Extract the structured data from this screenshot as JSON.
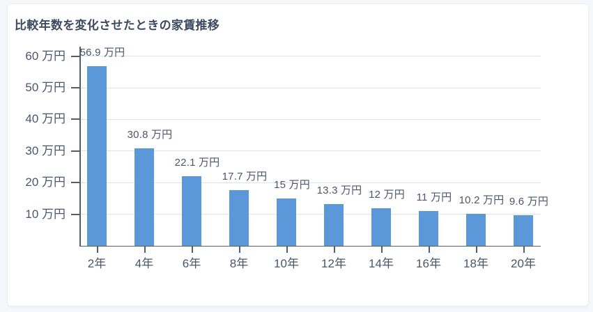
{
  "page": {
    "background_color": "#f6f7fa",
    "card_color": "#ffffff"
  },
  "chart_data": {
    "type": "bar",
    "title": "比較年数を変化させたときの家賃推移",
    "categories": [
      "2年",
      "4年",
      "6年",
      "8年",
      "10年",
      "12年",
      "14年",
      "16年",
      "18年",
      "20年"
    ],
    "values": [
      56.9,
      30.8,
      22.1,
      17.7,
      15,
      13.3,
      12,
      11,
      10.2,
      9.6
    ],
    "value_labels": [
      "56.9 万円",
      "30.8 万円",
      "22.1 万円",
      "17.7 万円",
      "15 万円",
      "13.3 万円",
      "12 万円",
      "11 万円",
      "10.2 万円",
      "9.6 万円"
    ],
    "unit": "万円",
    "xlabel": "",
    "ylabel": "",
    "y_ticks": [
      {
        "value": 10,
        "label": "10 万円"
      },
      {
        "value": 20,
        "label": "20 万円"
      },
      {
        "value": 30,
        "label": "30 万円"
      },
      {
        "value": 40,
        "label": "40 万円"
      },
      {
        "value": 50,
        "label": "50 万円"
      },
      {
        "value": 60,
        "label": "60 万円"
      }
    ],
    "ylim": [
      0,
      63
    ],
    "grid": true,
    "legend": false,
    "colors": {
      "bar": "#5A98D9",
      "grid_line": "#dde4ee",
      "axis_line": "#565c68",
      "tick_label": "#4b5669",
      "value_label": "#4b5669",
      "title": "#3d4a60"
    }
  }
}
